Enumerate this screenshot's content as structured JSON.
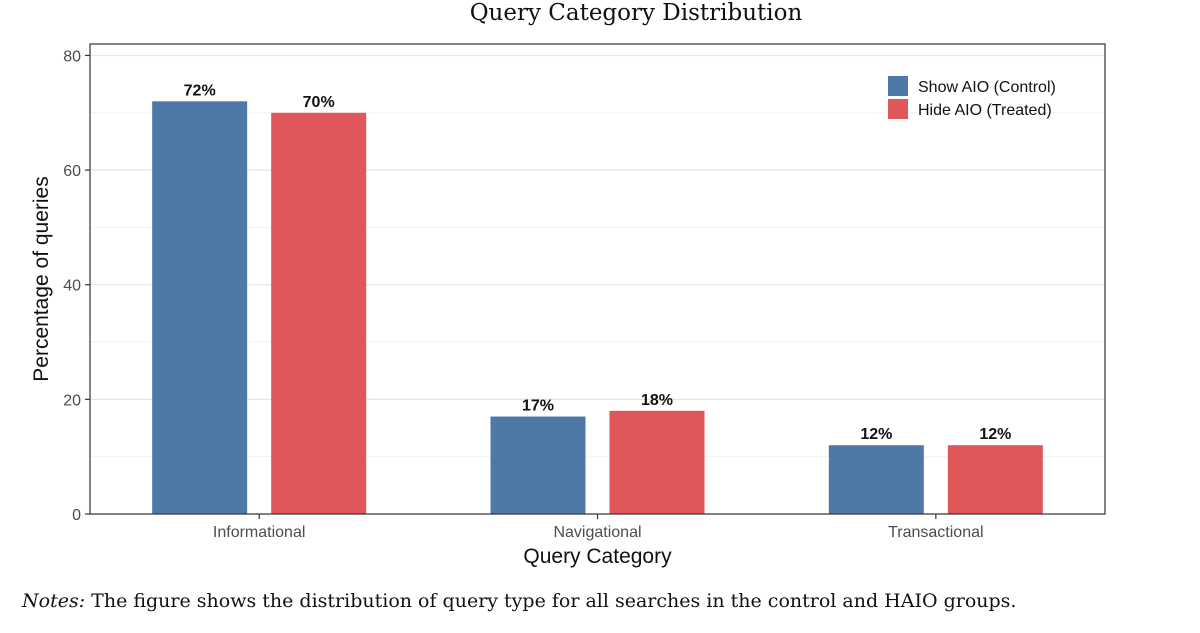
{
  "chart_data": {
    "type": "bar",
    "title": "Query Category Distribution",
    "xlabel": "Query Category",
    "ylabel": "Percentage of queries",
    "categories": [
      "Informational",
      "Navigational",
      "Transactional"
    ],
    "series": [
      {
        "name": "Show AIO (Control)",
        "color": "#4e79a7",
        "values": [
          72,
          17,
          12
        ],
        "labels": [
          "72%",
          "17%",
          "12%"
        ]
      },
      {
        "name": "Hide AIO (Treated)",
        "color": "#e15759",
        "values": [
          70,
          18,
          12
        ],
        "labels": [
          "70%",
          "18%",
          "12%"
        ]
      }
    ],
    "ylim": [
      0,
      82
    ],
    "yticks": [
      0,
      20,
      40,
      60,
      80
    ],
    "grid": true,
    "legend_position": "top-right"
  },
  "notes": {
    "label": "Notes:",
    "text": "The figure shows the distribution of query type for all searches in the control and HAIO groups."
  }
}
